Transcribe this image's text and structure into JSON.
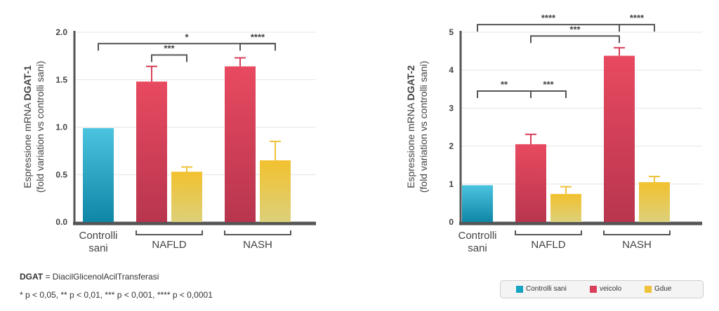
{
  "chart_data": [
    {
      "type": "bar",
      "ylabel_line1_prefix": "Espressione mRNA ",
      "ylabel_line1_bold": "DGAT-1",
      "ylabel_line2": "(fold variation vs controlli sani)",
      "ylim": [
        0,
        2.0
      ],
      "yticks": [
        "0.0",
        "0.5",
        "1.0",
        "1.5",
        "2.0"
      ],
      "ytick_values": [
        0,
        0.5,
        1.0,
        1.5,
        2.0
      ],
      "bars": [
        {
          "series": "Controlli sani",
          "value": 0.99,
          "error": 0
        },
        {
          "series": "veicolo",
          "group": "NAFLD",
          "value": 1.48,
          "error": 0.16
        },
        {
          "series": "Gdue",
          "group": "NAFLD",
          "value": 0.53,
          "error": 0.05
        },
        {
          "series": "veicolo",
          "group": "NASH",
          "value": 1.64,
          "error": 0.09
        },
        {
          "series": "Gdue",
          "group": "NASH",
          "value": 0.65,
          "error": 0.2
        }
      ],
      "category_labels": [
        {
          "line1": "Controlli",
          "line2": "sani"
        },
        {
          "line1": "NAFLD",
          "line2": ""
        },
        {
          "line1": "NASH",
          "line2": ""
        }
      ],
      "significance": [
        {
          "from_bar": 0,
          "to_bar": 4,
          "label": "*",
          "y": 1.88
        },
        {
          "from_bar": 1,
          "to_bar": 2,
          "label": "***",
          "y": 1.76
        },
        {
          "from_bar": 3,
          "to_bar": 4,
          "label": "****",
          "y": 1.88
        }
      ]
    },
    {
      "type": "bar",
      "ylabel_line1_prefix": "Espressione mRNA ",
      "ylabel_line1_bold": "DGAT-2",
      "ylabel_line2": "(fold variation vs controlli sani)",
      "ylim": [
        0,
        5
      ],
      "yticks": [
        "0",
        "1",
        "2",
        "3",
        "4",
        "5"
      ],
      "ytick_values": [
        0,
        1,
        2,
        3,
        4,
        5
      ],
      "bars": [
        {
          "series": "Controlli sani",
          "value": 0.97,
          "error": 0
        },
        {
          "series": "veicolo",
          "group": "NAFLD",
          "value": 2.05,
          "error": 0.26
        },
        {
          "series": "Gdue",
          "group": "NAFLD",
          "value": 0.74,
          "error": 0.19
        },
        {
          "series": "veicolo",
          "group": "NASH",
          "value": 4.38,
          "error": 0.21
        },
        {
          "series": "Gdue",
          "group": "NASH",
          "value": 1.05,
          "error": 0.15
        }
      ],
      "category_labels": [
        {
          "line1": "Controlli",
          "line2": "sani"
        },
        {
          "line1": "NAFLD",
          "line2": ""
        },
        {
          "line1": "NASH",
          "line2": ""
        }
      ],
      "significance": [
        {
          "from_bar": 0,
          "to_bar": 1,
          "label": "**",
          "y": 3.45
        },
        {
          "from_bar": 1,
          "to_bar": 2,
          "label": "***",
          "y": 3.45
        },
        {
          "from_bar": 0,
          "to_bar": 3,
          "label": "****",
          "y": 5.2
        },
        {
          "from_bar": 1,
          "to_bar": 3,
          "label": "***",
          "y": 4.9
        },
        {
          "from_bar": 3,
          "to_bar": 4,
          "label": "****",
          "y": 5.2
        }
      ]
    }
  ],
  "colors": {
    "Controlli sani": [
      "#4cc3df",
      "#0f86a6"
    ],
    "veicolo": [
      "#e84a60",
      "#b8354e"
    ],
    "Gdue": [
      "#f2c12f",
      "#dcd07a"
    ],
    "axis": "#555555"
  },
  "legend": [
    {
      "label": "Controlli sani",
      "color": "#17a3c4"
    },
    {
      "label": "veicolo",
      "color": "#d8405a"
    },
    {
      "label": "Gdue",
      "color": "#eec23a"
    }
  ],
  "footnote": {
    "abbr": "DGAT",
    "definition": " = DiacilGlicenolAcilTransferasi",
    "pvalues": "* p < 0,05, ** p < 0,01, *** p < 0,001, **** p < 0,0001"
  }
}
